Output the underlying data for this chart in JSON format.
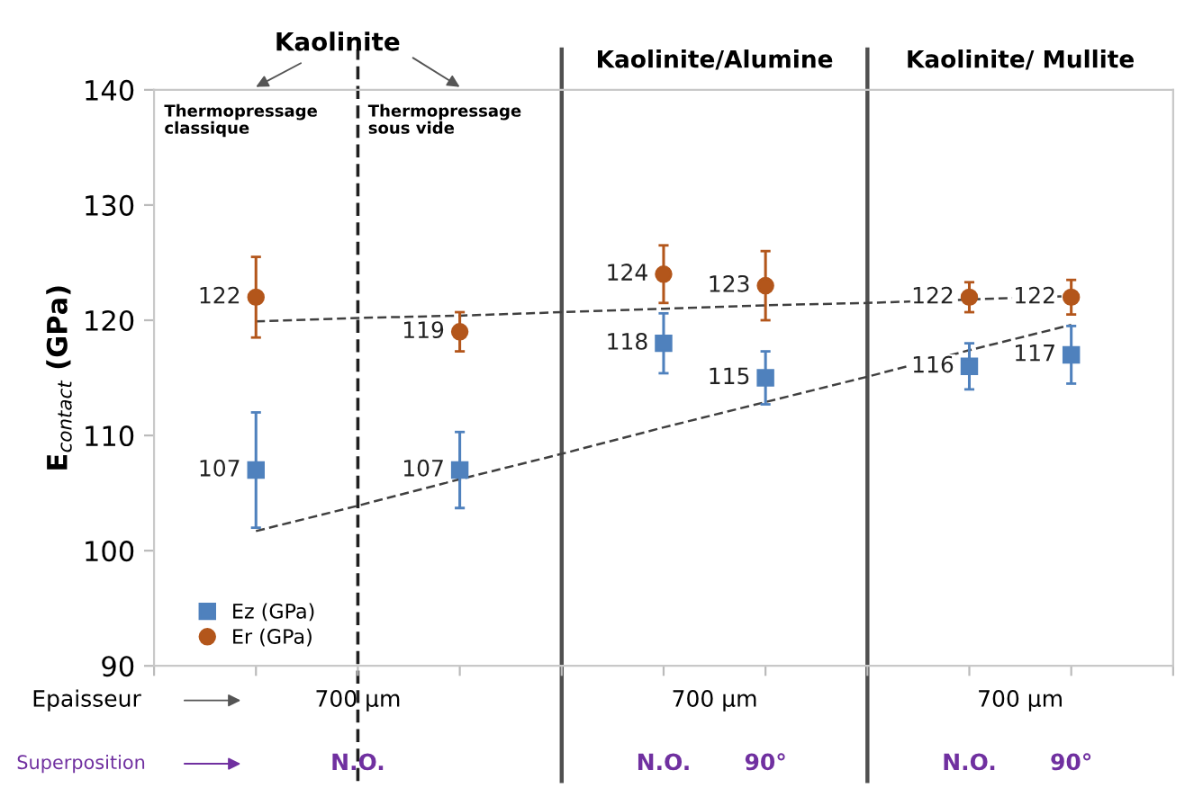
{
  "chart_data": {
    "type": "scatter",
    "ylabel": "E$_{contact}$ (GPa)",
    "categories": [
      null,
      null,
      null,
      null,
      null,
      null,
      null,
      null,
      null,
      null,
      null
    ],
    "series": [
      {
        "name": "Ez (GPa)",
        "color": "#4f81bd",
        "marker": "square",
        "values": [
          null,
          107,
          null,
          107,
          null,
          118,
          115,
          null,
          116,
          117,
          null
        ],
        "errors": [
          null,
          5,
          null,
          3.3,
          null,
          2.6,
          2.3,
          null,
          2,
          2.5,
          null
        ],
        "value_labels": [
          null,
          "107",
          null,
          "107",
          null,
          "118",
          "115",
          null,
          "116",
          "117",
          null
        ]
      },
      {
        "name": "Er (GPa)",
        "color": "#b3561b",
        "marker": "circle",
        "values": [
          null,
          122,
          null,
          119,
          null,
          124,
          123,
          null,
          122,
          122,
          null
        ],
        "errors": [
          null,
          3.5,
          null,
          1.7,
          null,
          2.5,
          3,
          null,
          1.3,
          1.5,
          null
        ],
        "value_labels": [
          null,
          "122",
          null,
          "119",
          null,
          "124",
          "123",
          null,
          "122",
          "122",
          null
        ]
      },
      {
        "type": "line",
        "color": "#404040",
        "line_style": "dashed",
        "marker": "none",
        "values": [
          null,
          119.9,
          120.2,
          120.4,
          120.7,
          121.0,
          121.3,
          121.5,
          121.8,
          122.1,
          null
        ]
      },
      {
        "type": "line",
        "color": "#404040",
        "line_style": "dashed",
        "marker": "none",
        "values": [
          null,
          101.7,
          103.9,
          106.2,
          108.4,
          110.7,
          112.9,
          115.1,
          117.4,
          119.6,
          null
        ]
      }
    ],
    "ylim": [
      90,
      140
    ],
    "yticks": [
      90,
      100,
      110,
      120,
      130,
      140
    ],
    "grid": false,
    "legend": "bottom left",
    "annotations": [
      "Kaolinite",
      "Thermopressage classique",
      "Thermopressage sous vide",
      "Kaolinite/Alumine",
      "Kaolinite/ Mullite",
      "Epaisseur",
      "700 µm",
      "700 µm",
      "700 µm",
      "Superposition",
      "N.O.",
      "N.O.",
      "90°",
      "N.O.",
      "90°"
    ]
  }
}
